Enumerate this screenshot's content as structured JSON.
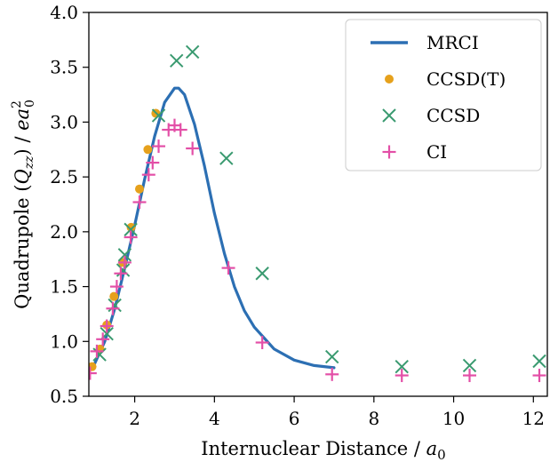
{
  "chart_data": {
    "type": "line+scatter",
    "xlabel": "Internuclear Distance / ",
    "xlabel_sym": "a",
    "xlabel_sub": "0",
    "ylabel": "Quadrupole (",
    "ylabel_sym": "Q",
    "ylabel_sub": "zz",
    "ylabel_mid": ") / ",
    "ylabel_unit": "ea",
    "ylabel_unit_sup": "2",
    "ylabel_unit_sub": "0",
    "xlim": [
      0.85,
      12.35
    ],
    "ylim": [
      0.5,
      4.0
    ],
    "xticks": [
      2,
      4,
      6,
      8,
      10,
      12
    ],
    "xtick_labels": [
      "2",
      "4",
      "6",
      "8",
      "10",
      "12"
    ],
    "yticks": [
      0.5,
      1.0,
      1.5,
      2.0,
      2.5,
      3.0,
      3.5,
      4.0
    ],
    "ytick_labels": [
      "0.5",
      "1.0",
      "1.5",
      "2.0",
      "2.5",
      "3.0",
      "3.5",
      "4.0"
    ],
    "grid": false,
    "legend_position": "top-right",
    "legend": [
      {
        "label": "MRCI",
        "marker": "line",
        "color": "#2c6fb3"
      },
      {
        "label": "CCSD(T)",
        "marker": "dot",
        "color": "#e6a11c"
      },
      {
        "label": "CCSD",
        "marker": "x",
        "color": "#3a9a70"
      },
      {
        "label": "CI",
        "marker": "plus",
        "color": "#e34fa7"
      }
    ],
    "series": [
      {
        "name": "MRCI",
        "style": "line",
        "color": "#2c6fb3",
        "x": [
          1.0,
          1.25,
          1.5,
          1.75,
          2.0,
          2.25,
          2.5,
          2.75,
          3.0,
          3.1,
          3.25,
          3.5,
          3.75,
          4.0,
          4.25,
          4.5,
          4.75,
          5.0,
          5.5,
          6.0,
          6.5,
          7.0
        ],
        "y": [
          0.8,
          1.0,
          1.3,
          1.67,
          2.06,
          2.48,
          2.87,
          3.18,
          3.31,
          3.31,
          3.25,
          2.98,
          2.6,
          2.17,
          1.8,
          1.5,
          1.28,
          1.13,
          0.93,
          0.83,
          0.78,
          0.76
        ]
      },
      {
        "name": "CCSD(T)",
        "style": "dot",
        "color": "#e6a11c",
        "x": [
          0.93,
          1.13,
          1.3,
          1.48,
          1.7,
          1.91,
          2.12,
          2.33,
          2.53
        ],
        "y": [
          0.77,
          0.93,
          1.15,
          1.41,
          1.72,
          2.04,
          2.39,
          2.75,
          3.08
        ]
      },
      {
        "name": "CCSD",
        "style": "x",
        "color": "#3a9a70",
        "x": [
          1.12,
          1.3,
          1.5,
          1.71,
          1.75,
          1.9,
          2.6,
          3.05,
          3.45,
          4.3,
          5.2,
          6.95,
          8.7,
          10.4,
          12.15
        ],
        "y": [
          0.88,
          1.07,
          1.33,
          1.65,
          1.79,
          2.02,
          3.06,
          3.56,
          3.64,
          2.67,
          1.62,
          0.86,
          0.77,
          0.78,
          0.82
        ],
        "partial": [
          false,
          false,
          false,
          false,
          false,
          false,
          false,
          false,
          false,
          false,
          false,
          false,
          false,
          false,
          true
        ]
      },
      {
        "name": "CI",
        "style": "plus",
        "color": "#e34fa7",
        "x": [
          0.88,
          1.05,
          1.2,
          1.3,
          1.45,
          1.55,
          1.65,
          1.75,
          1.9,
          2.12,
          2.35,
          2.45,
          2.6,
          2.85,
          3.0,
          3.15,
          3.45,
          4.35,
          5.2,
          6.95,
          8.7,
          10.4,
          12.15
        ],
        "y": [
          0.71,
          0.91,
          1.02,
          1.14,
          1.3,
          1.5,
          1.62,
          1.72,
          1.95,
          2.27,
          2.52,
          2.63,
          2.78,
          2.93,
          2.97,
          2.93,
          2.76,
          1.67,
          0.99,
          0.7,
          0.69,
          0.69,
          0.69
        ],
        "partial": [
          true,
          false,
          false,
          false,
          false,
          false,
          false,
          false,
          false,
          false,
          false,
          false,
          false,
          false,
          false,
          false,
          false,
          false,
          false,
          false,
          false,
          false,
          true
        ]
      }
    ]
  }
}
